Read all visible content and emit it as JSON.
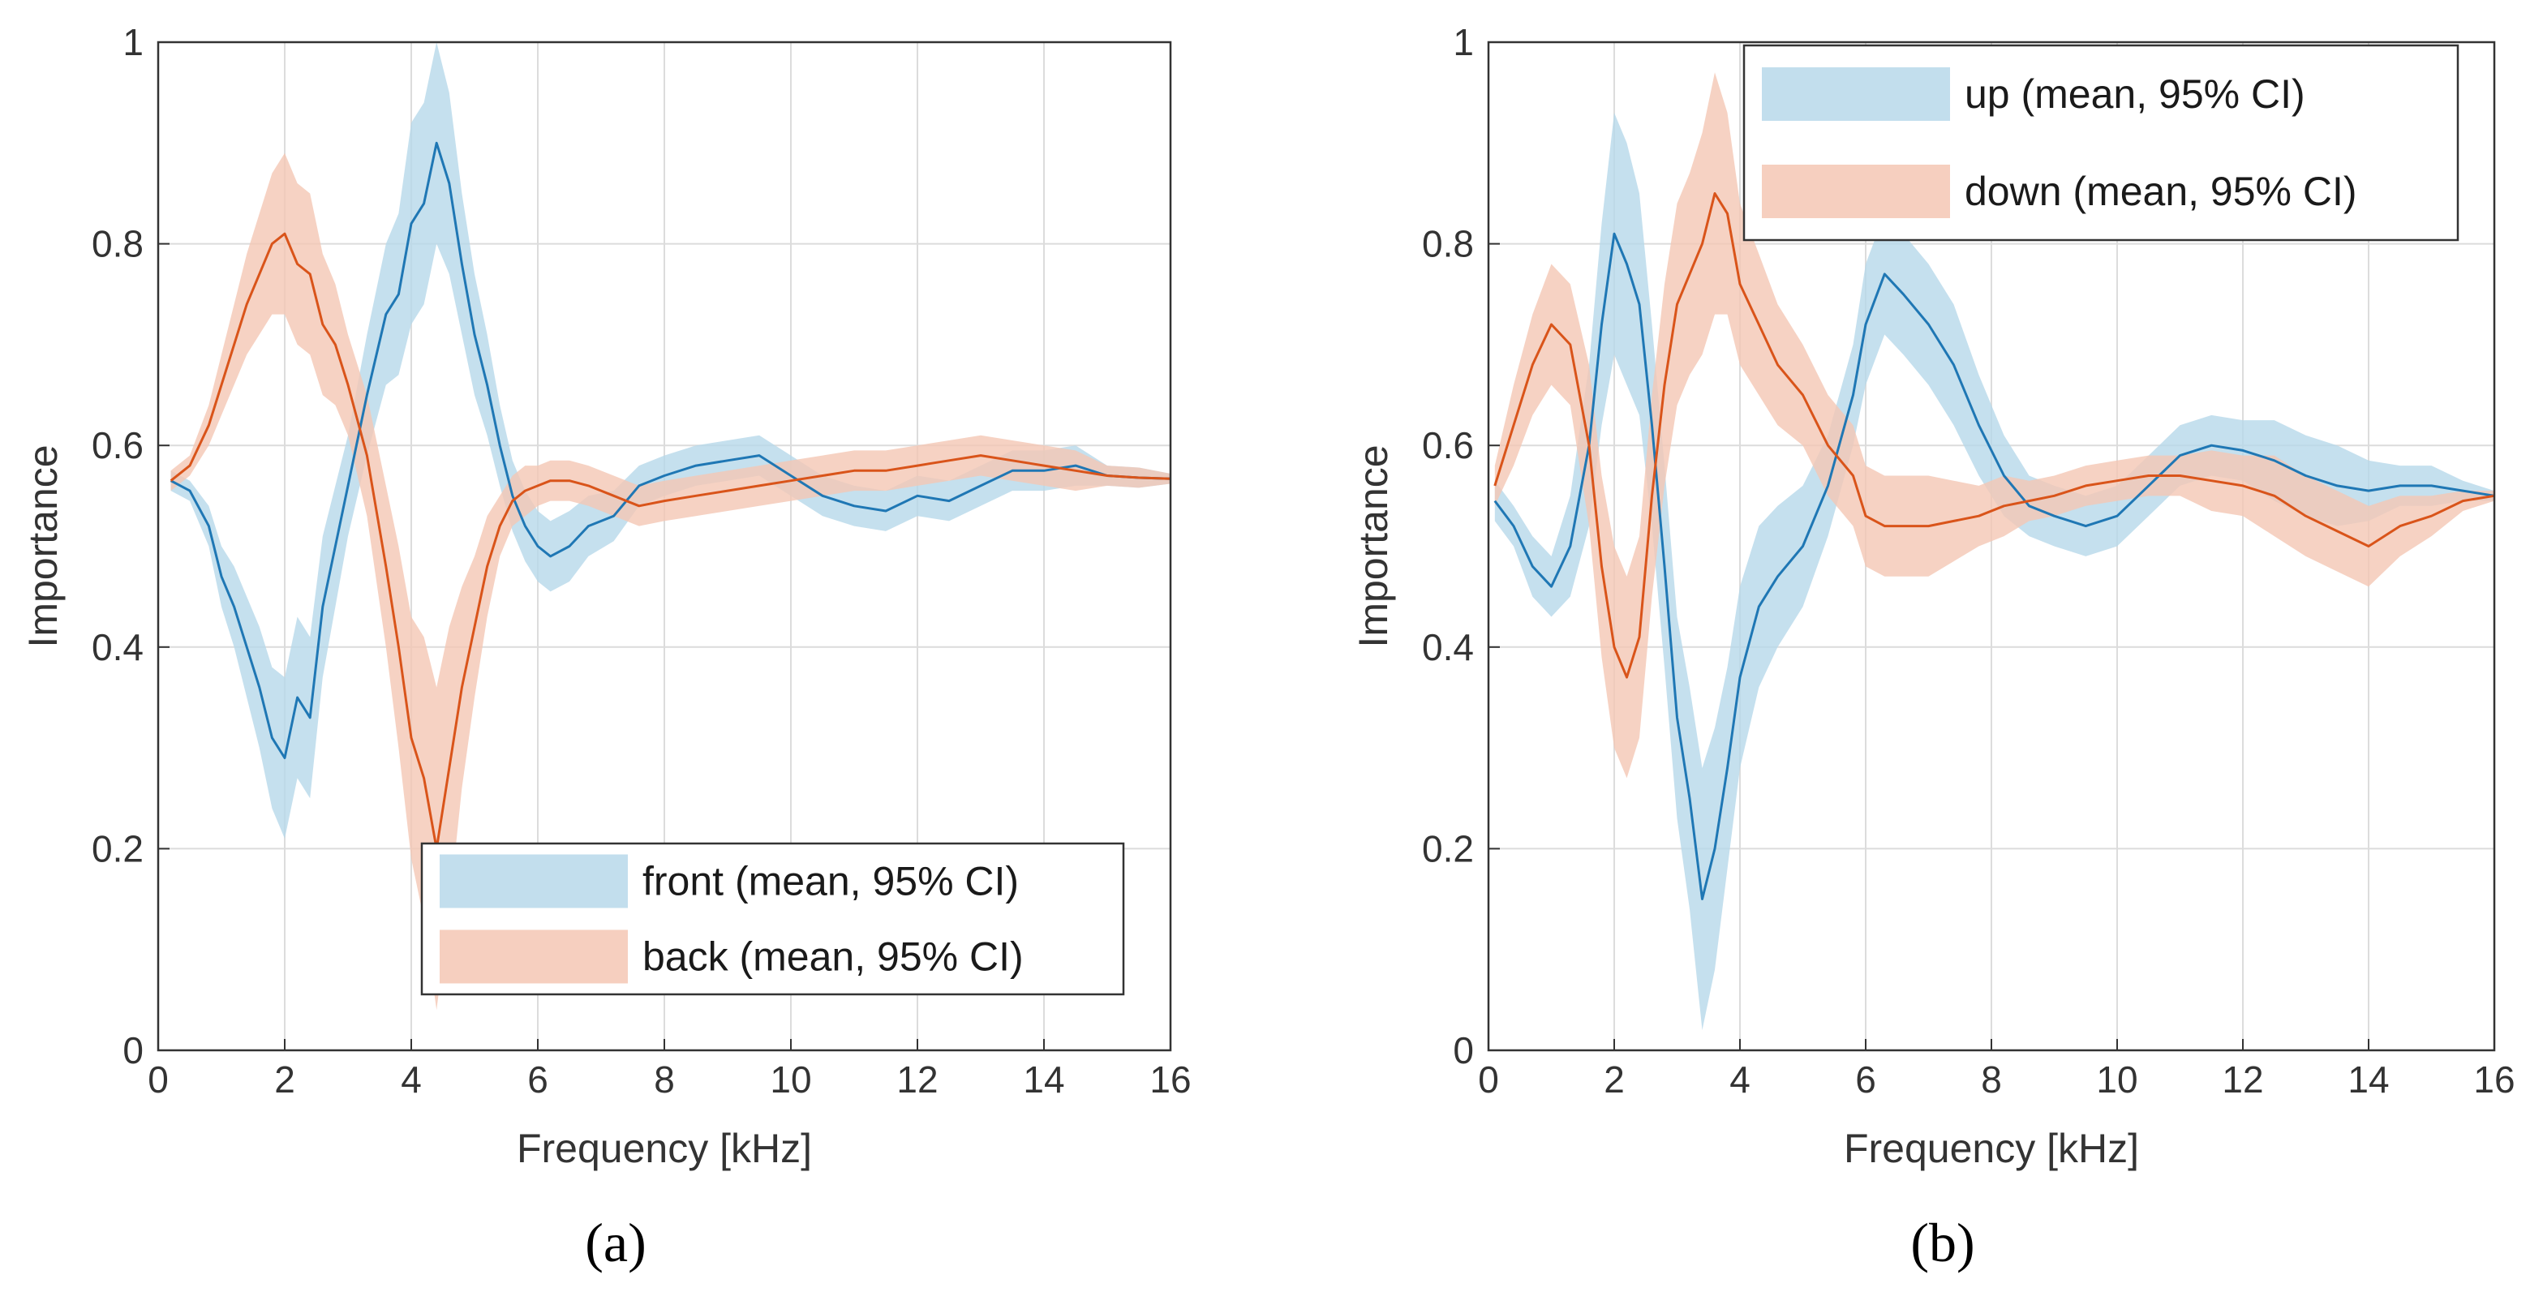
{
  "figure": {
    "panel_labels": [
      "(a)",
      "(b)"
    ]
  },
  "colors": {
    "blue": "#1f77b4",
    "blue_fill": "#b7d8ea",
    "orange": "#d9541a",
    "orange_fill": "#f4c7b4",
    "grid": "#dcdcdc",
    "axis": "#333333",
    "text": "#333333"
  },
  "chart_data": [
    {
      "type": "line",
      "panel_label": "(a)",
      "title": "",
      "xlabel": "Frequency [kHz]",
      "ylabel": "Importance",
      "xlim": [
        0,
        16
      ],
      "ylim": [
        0,
        1
      ],
      "xticks": [
        0,
        2,
        4,
        6,
        8,
        10,
        12,
        14,
        16
      ],
      "yticks": [
        0,
        0.2,
        0.4,
        0.6,
        0.8,
        1
      ],
      "ytick_labels": [
        "0",
        "0.2",
        "0.4",
        "0.6",
        "0.8",
        "1"
      ],
      "grid": true,
      "legend_position": "bottom-right",
      "series": [
        {
          "name": "front (mean, 95% CI)",
          "color": "blue",
          "x": [
            0.2,
            0.5,
            0.8,
            1.0,
            1.2,
            1.4,
            1.6,
            1.8,
            2.0,
            2.2,
            2.4,
            2.6,
            2.8,
            3.0,
            3.3,
            3.6,
            3.8,
            4.0,
            4.2,
            4.4,
            4.6,
            4.8,
            5.0,
            5.2,
            5.4,
            5.6,
            5.8,
            6.0,
            6.2,
            6.5,
            6.8,
            7.2,
            7.6,
            8.0,
            8.5,
            9.0,
            9.5,
            10.0,
            10.5,
            11.0,
            11.5,
            12.0,
            12.5,
            13.0,
            13.5,
            14.0,
            14.5,
            15.0,
            15.5,
            16.0
          ],
          "y": [
            0.565,
            0.555,
            0.52,
            0.47,
            0.44,
            0.4,
            0.36,
            0.31,
            0.29,
            0.35,
            0.33,
            0.44,
            0.5,
            0.56,
            0.65,
            0.73,
            0.75,
            0.82,
            0.84,
            0.9,
            0.86,
            0.78,
            0.71,
            0.66,
            0.6,
            0.55,
            0.52,
            0.5,
            0.49,
            0.5,
            0.52,
            0.53,
            0.56,
            0.57,
            0.58,
            0.585,
            0.59,
            0.57,
            0.55,
            0.54,
            0.535,
            0.55,
            0.545,
            0.56,
            0.575,
            0.575,
            0.58,
            0.57,
            0.568,
            0.567
          ],
          "ci_half_width": [
            0.01,
            0.01,
            0.02,
            0.03,
            0.04,
            0.05,
            0.06,
            0.07,
            0.08,
            0.08,
            0.08,
            0.07,
            0.06,
            0.05,
            0.06,
            0.07,
            0.08,
            0.1,
            0.1,
            0.1,
            0.09,
            0.07,
            0.06,
            0.05,
            0.04,
            0.035,
            0.035,
            0.035,
            0.035,
            0.035,
            0.03,
            0.025,
            0.02,
            0.02,
            0.02,
            0.02,
            0.02,
            0.02,
            0.02,
            0.02,
            0.02,
            0.02,
            0.02,
            0.02,
            0.02,
            0.02,
            0.02,
            0.01,
            0.01,
            0.005
          ]
        },
        {
          "name": "back (mean, 95% CI)",
          "color": "orange",
          "x": [
            0.2,
            0.5,
            0.8,
            1.0,
            1.2,
            1.4,
            1.6,
            1.8,
            2.0,
            2.2,
            2.4,
            2.6,
            2.8,
            3.0,
            3.3,
            3.6,
            3.8,
            4.0,
            4.2,
            4.4,
            4.6,
            4.8,
            5.0,
            5.2,
            5.4,
            5.6,
            5.8,
            6.0,
            6.2,
            6.5,
            6.8,
            7.2,
            7.6,
            8.0,
            8.5,
            9.0,
            9.5,
            10.0,
            10.5,
            11.0,
            11.5,
            12.0,
            12.5,
            13.0,
            13.5,
            14.0,
            14.5,
            15.0,
            15.5,
            16.0
          ],
          "y": [
            0.565,
            0.58,
            0.62,
            0.66,
            0.7,
            0.74,
            0.77,
            0.8,
            0.81,
            0.78,
            0.77,
            0.72,
            0.7,
            0.66,
            0.59,
            0.48,
            0.4,
            0.31,
            0.27,
            0.2,
            0.28,
            0.36,
            0.42,
            0.48,
            0.52,
            0.545,
            0.555,
            0.56,
            0.565,
            0.565,
            0.56,
            0.55,
            0.54,
            0.545,
            0.55,
            0.555,
            0.56,
            0.565,
            0.57,
            0.575,
            0.575,
            0.58,
            0.585,
            0.59,
            0.585,
            0.58,
            0.575,
            0.57,
            0.568,
            0.567
          ],
          "ci_half_width": [
            0.01,
            0.01,
            0.02,
            0.03,
            0.04,
            0.05,
            0.06,
            0.07,
            0.08,
            0.08,
            0.08,
            0.07,
            0.06,
            0.05,
            0.06,
            0.08,
            0.1,
            0.12,
            0.14,
            0.16,
            0.14,
            0.1,
            0.07,
            0.05,
            0.03,
            0.025,
            0.025,
            0.02,
            0.02,
            0.02,
            0.02,
            0.02,
            0.02,
            0.02,
            0.02,
            0.02,
            0.02,
            0.02,
            0.02,
            0.02,
            0.02,
            0.02,
            0.02,
            0.02,
            0.02,
            0.02,
            0.02,
            0.01,
            0.01,
            0.005
          ]
        }
      ]
    },
    {
      "type": "line",
      "panel_label": "(b)",
      "title": "",
      "xlabel": "Frequency [kHz]",
      "ylabel": "Importance",
      "xlim": [
        0,
        16
      ],
      "ylim": [
        0,
        1
      ],
      "xticks": [
        0,
        2,
        4,
        6,
        8,
        10,
        12,
        14,
        16
      ],
      "yticks": [
        0,
        0.2,
        0.4,
        0.6,
        0.8,
        1
      ],
      "ytick_labels": [
        "0",
        "0.2",
        "0.4",
        "0.6",
        "0.8",
        "1"
      ],
      "grid": true,
      "legend_position": "top-right",
      "series": [
        {
          "name": "up (mean, 95% CI)",
          "color": "blue",
          "x": [
            0.1,
            0.4,
            0.7,
            1.0,
            1.3,
            1.6,
            1.8,
            2.0,
            2.2,
            2.4,
            2.6,
            2.8,
            3.0,
            3.2,
            3.4,
            3.6,
            3.8,
            4.0,
            4.3,
            4.6,
            5.0,
            5.4,
            5.8,
            6.0,
            6.3,
            6.6,
            7.0,
            7.4,
            7.8,
            8.2,
            8.6,
            9.0,
            9.5,
            10.0,
            10.5,
            11.0,
            11.5,
            12.0,
            12.5,
            13.0,
            13.5,
            14.0,
            14.5,
            15.0,
            15.5,
            16.0
          ],
          "y": [
            0.545,
            0.52,
            0.48,
            0.46,
            0.5,
            0.6,
            0.72,
            0.81,
            0.78,
            0.74,
            0.62,
            0.48,
            0.33,
            0.25,
            0.15,
            0.2,
            0.28,
            0.37,
            0.44,
            0.47,
            0.5,
            0.56,
            0.65,
            0.72,
            0.77,
            0.75,
            0.72,
            0.68,
            0.62,
            0.57,
            0.54,
            0.53,
            0.52,
            0.53,
            0.56,
            0.59,
            0.6,
            0.595,
            0.585,
            0.57,
            0.56,
            0.555,
            0.56,
            0.56,
            0.555,
            0.55
          ],
          "ci_half_width": [
            0.02,
            0.02,
            0.03,
            0.03,
            0.05,
            0.08,
            0.1,
            0.12,
            0.12,
            0.11,
            0.1,
            0.1,
            0.1,
            0.11,
            0.13,
            0.12,
            0.1,
            0.09,
            0.08,
            0.07,
            0.06,
            0.05,
            0.05,
            0.06,
            0.06,
            0.06,
            0.06,
            0.06,
            0.05,
            0.04,
            0.03,
            0.03,
            0.03,
            0.03,
            0.03,
            0.03,
            0.03,
            0.03,
            0.04,
            0.04,
            0.04,
            0.03,
            0.02,
            0.02,
            0.01,
            0.005
          ]
        },
        {
          "name": "down (mean, 95% CI)",
          "color": "orange",
          "x": [
            0.1,
            0.4,
            0.7,
            1.0,
            1.3,
            1.6,
            1.8,
            2.0,
            2.2,
            2.4,
            2.6,
            2.8,
            3.0,
            3.2,
            3.4,
            3.6,
            3.8,
            4.0,
            4.3,
            4.6,
            5.0,
            5.4,
            5.8,
            6.0,
            6.3,
            6.6,
            7.0,
            7.4,
            7.8,
            8.2,
            8.6,
            9.0,
            9.5,
            10.0,
            10.5,
            11.0,
            11.5,
            12.0,
            12.5,
            13.0,
            13.5,
            14.0,
            14.5,
            15.0,
            15.5,
            16.0
          ],
          "y": [
            0.56,
            0.62,
            0.68,
            0.72,
            0.7,
            0.6,
            0.48,
            0.4,
            0.37,
            0.41,
            0.55,
            0.66,
            0.74,
            0.77,
            0.8,
            0.85,
            0.83,
            0.76,
            0.72,
            0.68,
            0.65,
            0.6,
            0.57,
            0.53,
            0.52,
            0.52,
            0.52,
            0.525,
            0.53,
            0.54,
            0.545,
            0.55,
            0.56,
            0.565,
            0.57,
            0.57,
            0.565,
            0.56,
            0.55,
            0.53,
            0.515,
            0.5,
            0.52,
            0.53,
            0.545,
            0.55
          ],
          "ci_half_width": [
            0.02,
            0.04,
            0.05,
            0.06,
            0.06,
            0.08,
            0.09,
            0.1,
            0.1,
            0.1,
            0.1,
            0.1,
            0.1,
            0.1,
            0.11,
            0.12,
            0.1,
            0.08,
            0.07,
            0.06,
            0.05,
            0.05,
            0.05,
            0.05,
            0.05,
            0.05,
            0.05,
            0.04,
            0.03,
            0.03,
            0.02,
            0.02,
            0.02,
            0.02,
            0.02,
            0.02,
            0.03,
            0.03,
            0.04,
            0.04,
            0.04,
            0.04,
            0.03,
            0.02,
            0.01,
            0.005
          ]
        }
      ]
    }
  ]
}
